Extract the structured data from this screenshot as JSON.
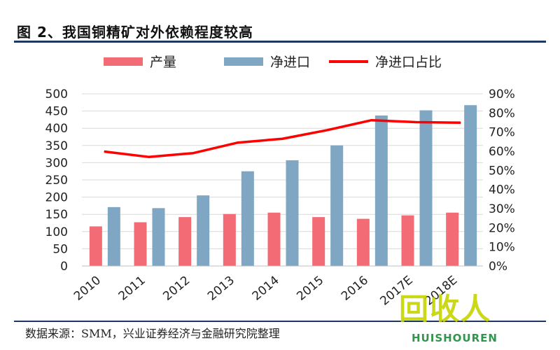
{
  "header": {
    "title": "图 2、我国铜精矿对外依赖程度较高"
  },
  "footer": {
    "source": "数据来源：SMM，兴业证券经济与金融研究院整理"
  },
  "watermark": {
    "text": "回收人",
    "subtext": "HUISHOUREN"
  },
  "chart_data": {
    "type": "bar",
    "title": "",
    "categories": [
      "2010",
      "2011",
      "2012",
      "2013",
      "2014",
      "2015",
      "2016",
      "2017E",
      "2018E"
    ],
    "series": [
      {
        "name": "产量",
        "type": "bar",
        "axis": "left",
        "values": [
          115,
          127,
          142,
          151,
          155,
          142,
          137,
          147,
          155
        ],
        "color": "#f26b75"
      },
      {
        "name": "净进口",
        "type": "bar",
        "axis": "left",
        "values": [
          171,
          168,
          205,
          275,
          307,
          350,
          437,
          452,
          467
        ],
        "color": "#7fa6c2"
      },
      {
        "name": "净进口占比",
        "type": "line",
        "axis": "right",
        "values": [
          0.598,
          0.57,
          0.59,
          0.645,
          0.665,
          0.71,
          0.762,
          0.752,
          0.749
        ],
        "color": "#ff0000"
      }
    ],
    "y_left": {
      "min": 0,
      "max": 500,
      "step": 50,
      "ticks": [
        "0",
        "50",
        "100",
        "150",
        "200",
        "250",
        "300",
        "350",
        "400",
        "450",
        "500"
      ]
    },
    "y_right": {
      "min": 0,
      "max": 0.9,
      "step": 0.1,
      "ticks": [
        "0%",
        "10%",
        "20%",
        "30%",
        "40%",
        "50%",
        "60%",
        "70%",
        "80%",
        "90%"
      ]
    },
    "grid": true,
    "legend": "top"
  }
}
